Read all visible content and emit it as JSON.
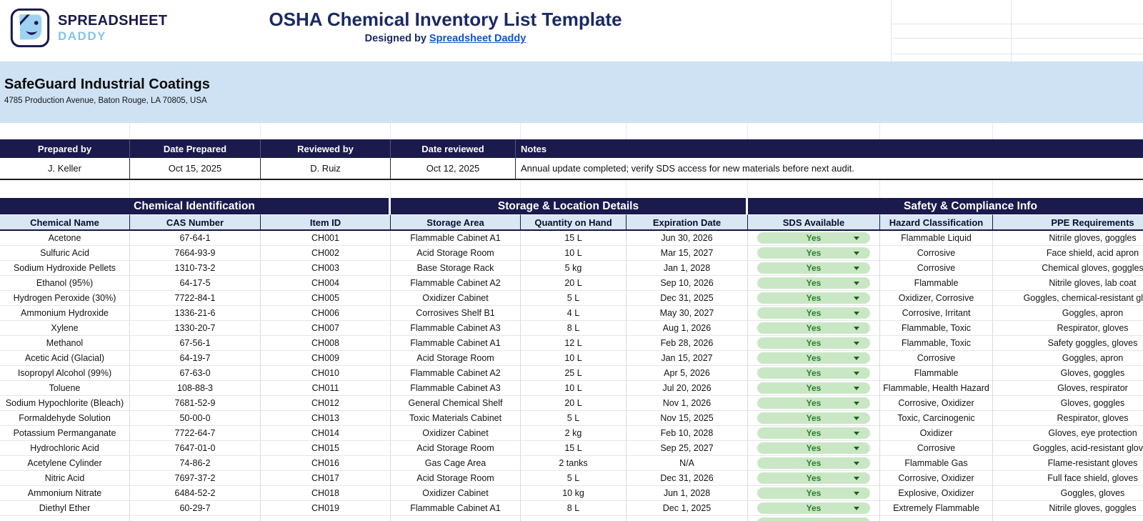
{
  "brand": {
    "name_top": "SPREADSHEET",
    "name_bottom": "DADDY"
  },
  "header": {
    "title": "OSHA Chemical Inventory List Template",
    "designed_by_prefix": "Designed by ",
    "designed_by_link": "Spreadsheet Daddy"
  },
  "company": {
    "name": "SafeGuard Industrial Coatings",
    "address": "4785 Production Avenue, Baton Rouge, LA 70805, USA"
  },
  "review_table": {
    "headers": [
      "Prepared by",
      "Date Prepared",
      "Reviewed by",
      "Date reviewed",
      "Notes"
    ],
    "values": [
      "J. Keller",
      "Oct 15, 2025",
      "D. Ruiz",
      "Oct 12, 2025",
      "Annual update completed; verify SDS access for new materials before next audit."
    ]
  },
  "sections": [
    "Chemical Identification",
    "Storage & Location Details",
    "Safety & Compliance Info"
  ],
  "columns": [
    "Chemical Name",
    "CAS Number",
    "Item ID",
    "Storage Area",
    "Quantity on Hand",
    "Expiration Date",
    "SDS Available",
    "Hazard Classification",
    "PPE Requirements"
  ],
  "rows": [
    {
      "name": "Acetone",
      "cas": "67-64-1",
      "item": "CH001",
      "storage": "Flammable Cabinet A1",
      "qty": "15 L",
      "expiration": "Jun 30, 2026",
      "sds": "Yes",
      "hazard": "Flammable Liquid",
      "ppe": "Nitrile gloves, goggles"
    },
    {
      "name": "Sulfuric Acid",
      "cas": "7664-93-9",
      "item": "CH002",
      "storage": "Acid Storage Room",
      "qty": "10 L",
      "expiration": "Mar 15, 2027",
      "sds": "Yes",
      "hazard": "Corrosive",
      "ppe": "Face shield, acid apron"
    },
    {
      "name": "Sodium Hydroxide Pellets",
      "cas": "1310-73-2",
      "item": "CH003",
      "storage": "Base Storage Rack",
      "qty": "5 kg",
      "expiration": "Jan 1, 2028",
      "sds": "Yes",
      "hazard": "Corrosive",
      "ppe": "Chemical gloves, goggles"
    },
    {
      "name": "Ethanol (95%)",
      "cas": "64-17-5",
      "item": "CH004",
      "storage": "Flammable Cabinet A2",
      "qty": "20 L",
      "expiration": "Sep 10, 2026",
      "sds": "Yes",
      "hazard": "Flammable",
      "ppe": "Nitrile gloves, lab coat"
    },
    {
      "name": "Hydrogen Peroxide (30%)",
      "cas": "7722-84-1",
      "item": "CH005",
      "storage": "Oxidizer Cabinet",
      "qty": "5 L",
      "expiration": "Dec 31, 2025",
      "sds": "Yes",
      "hazard": "Oxidizer, Corrosive",
      "ppe": "Goggles, chemical-resistant gloves"
    },
    {
      "name": "Ammonium Hydroxide",
      "cas": "1336-21-6",
      "item": "CH006",
      "storage": "Corrosives Shelf B1",
      "qty": "4 L",
      "expiration": "May 30, 2027",
      "sds": "Yes",
      "hazard": "Corrosive, Irritant",
      "ppe": "Goggles, apron"
    },
    {
      "name": "Xylene",
      "cas": "1330-20-7",
      "item": "CH007",
      "storage": "Flammable Cabinet A3",
      "qty": "8 L",
      "expiration": "Aug 1, 2026",
      "sds": "Yes",
      "hazard": "Flammable, Toxic",
      "ppe": "Respirator, gloves"
    },
    {
      "name": "Methanol",
      "cas": "67-56-1",
      "item": "CH008",
      "storage": "Flammable Cabinet A1",
      "qty": "12 L",
      "expiration": "Feb 28, 2026",
      "sds": "Yes",
      "hazard": "Flammable, Toxic",
      "ppe": "Safety goggles, gloves"
    },
    {
      "name": "Acetic Acid (Glacial)",
      "cas": "64-19-7",
      "item": "CH009",
      "storage": "Acid Storage Room",
      "qty": "10 L",
      "expiration": "Jan 15, 2027",
      "sds": "Yes",
      "hazard": "Corrosive",
      "ppe": "Goggles, apron"
    },
    {
      "name": "Isopropyl Alcohol (99%)",
      "cas": "67-63-0",
      "item": "CH010",
      "storage": "Flammable Cabinet A2",
      "qty": "25 L",
      "expiration": "Apr 5, 2026",
      "sds": "Yes",
      "hazard": "Flammable",
      "ppe": "Gloves, goggles"
    },
    {
      "name": "Toluene",
      "cas": "108-88-3",
      "item": "CH011",
      "storage": "Flammable Cabinet A3",
      "qty": "10 L",
      "expiration": "Jul 20, 2026",
      "sds": "Yes",
      "hazard": "Flammable, Health Hazard",
      "ppe": "Gloves, respirator"
    },
    {
      "name": "Sodium Hypochlorite (Bleach)",
      "cas": "7681-52-9",
      "item": "CH012",
      "storage": "General Chemical Shelf",
      "qty": "20 L",
      "expiration": "Nov 1, 2026",
      "sds": "Yes",
      "hazard": "Corrosive, Oxidizer",
      "ppe": "Gloves, goggles"
    },
    {
      "name": "Formaldehyde Solution",
      "cas": "50-00-0",
      "item": "CH013",
      "storage": "Toxic Materials Cabinet",
      "qty": "5 L",
      "expiration": "Nov 15, 2025",
      "sds": "Yes",
      "hazard": "Toxic, Carcinogenic",
      "ppe": "Respirator, gloves"
    },
    {
      "name": "Potassium Permanganate",
      "cas": "7722-64-7",
      "item": "CH014",
      "storage": "Oxidizer Cabinet",
      "qty": "2 kg",
      "expiration": "Feb 10, 2028",
      "sds": "Yes",
      "hazard": "Oxidizer",
      "ppe": "Gloves, eye protection"
    },
    {
      "name": "Hydrochloric Acid",
      "cas": "7647-01-0",
      "item": "CH015",
      "storage": "Acid Storage Room",
      "qty": "15 L",
      "expiration": "Sep 25, 2027",
      "sds": "Yes",
      "hazard": "Corrosive",
      "ppe": "Goggles, acid-resistant gloves"
    },
    {
      "name": "Acetylene Cylinder",
      "cas": "74-86-2",
      "item": "CH016",
      "storage": "Gas Cage Area",
      "qty": "2 tanks",
      "expiration": "N/A",
      "sds": "Yes",
      "hazard": "Flammable Gas",
      "ppe": "Flame-resistant gloves"
    },
    {
      "name": "Nitric Acid",
      "cas": "7697-37-2",
      "item": "CH017",
      "storage": "Acid Storage Room",
      "qty": "5 L",
      "expiration": "Dec 31, 2026",
      "sds": "Yes",
      "hazard": "Corrosive, Oxidizer",
      "ppe": "Full face shield, gloves"
    },
    {
      "name": "Ammonium Nitrate",
      "cas": "6484-52-2",
      "item": "CH018",
      "storage": "Oxidizer Cabinet",
      "qty": "10 kg",
      "expiration": "Jun 1, 2028",
      "sds": "Yes",
      "hazard": "Explosive, Oxidizer",
      "ppe": "Goggles, gloves"
    },
    {
      "name": "Diethyl Ether",
      "cas": "60-29-7",
      "item": "CH019",
      "storage": "Flammable Cabinet A1",
      "qty": "8 L",
      "expiration": "Dec 1, 2025",
      "sds": "Yes",
      "hazard": "Extremely Flammable",
      "ppe": "Nitrile gloves, goggles"
    }
  ],
  "colors": {
    "navy": "#1a1a4d",
    "title_navy": "#1b2a63",
    "link_blue": "#1155cc",
    "band_blue": "#cfe2f3",
    "column_header_blue": "#d9e6f4",
    "pill_green": "#c9e7c4",
    "pill_text_green": "#2e7d32",
    "brand_light_blue": "#85c4ee"
  }
}
